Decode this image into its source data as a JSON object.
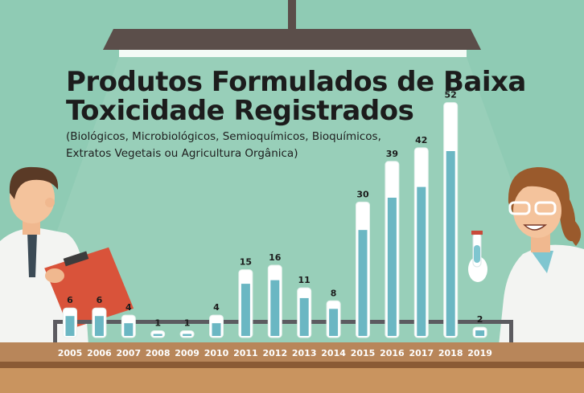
{
  "title_line1": "Produtos Formulados de Baixa",
  "title_line2": "Toxicidade Registrados",
  "subtitle_line1": "(Biológicos, Microbiológicos, Semioquímicos, Bioquímicos,",
  "subtitle_line2": "Extratos Vegetais ou Agricultura Orgânica)",
  "colors": {
    "background": "#8fcbb4",
    "liquid": "#6bb7c3",
    "tube": "#ffffff",
    "table": "#b8865a",
    "table_dark": "#8a5a35",
    "lamp": "#5b4e4a"
  },
  "chart_data": {
    "type": "bar",
    "title": "Produtos Formulados de Baixa Toxicidade Registrados",
    "subtitle": "(Biológicos, Microbiológicos, Semioquímicos, Bioquímicos, Extratos Vegetais ou Agricultura Orgânica)",
    "categories": [
      "2005",
      "2006",
      "2007",
      "2008",
      "2009",
      "2010",
      "2011",
      "2012",
      "2013",
      "2014",
      "2015",
      "2016",
      "2017",
      "2018",
      "2019"
    ],
    "values": [
      6,
      6,
      4,
      1,
      1,
      4,
      15,
      16,
      11,
      8,
      30,
      39,
      42,
      52,
      2
    ],
    "ylim": [
      0,
      52
    ],
    "grid": false,
    "xlabel": "",
    "ylabel": ""
  }
}
